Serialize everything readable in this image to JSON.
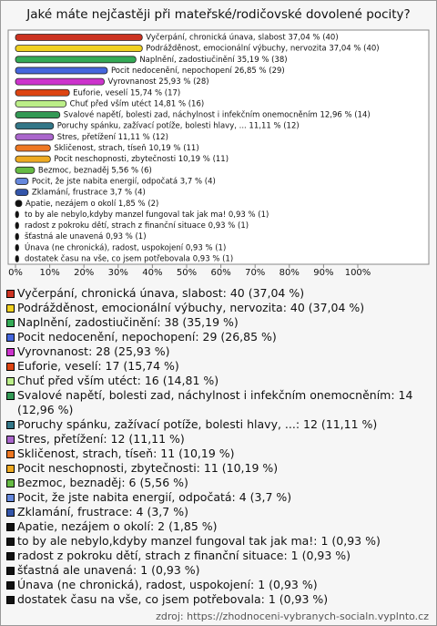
{
  "chart_data": {
    "type": "bar",
    "orientation": "horizontal",
    "title": "Jaké máte nejčastěji při mateřské/rodičovské dovolené pocity?",
    "values": [
      37.04,
      37.04,
      35.19,
      26.85,
      25.93,
      15.74,
      14.81,
      12.96,
      11.11,
      11.11,
      10.19,
      10.19,
      5.56,
      3.7,
      3.7,
      1.85,
      0.93,
      0.93,
      0.93,
      0.93,
      0.93
    ],
    "value_labels": [
      "Vyčerpání, chronická únava, slabost 37,04 % (40)",
      "Podrážděnost, emocionální výbuchy, nervozita 37,04 % (40)",
      "Naplnění, zadostiučinění 35,19 % (38)",
      "Pocit nedocenění, nepochopení 26,85 % (29)",
      "Vyrovnanost 25,93 % (28)",
      "Euforie, veselí 15,74 % (17)",
      "Chuť před vším utéct 14,81 % (16)",
      "Svalové napětí, bolesti zad, náchylnost i infekčním onemocněním 12,96 % (14)",
      "Poruchy spánku, zažívací potíže, bolesti hlavy, ... 11,11 % (12)",
      "Stres, přetížení 11,11 % (12)",
      "Skličenost, strach, tíseň 10,19 % (11)",
      "Pocit neschopnosti, zbytečnosti 10,19 % (11)",
      "Bezmoc, beznaděj 5,56 % (6)",
      "Pocit, že jste nabita energií, odpočatá 3,7 % (4)",
      "Zklamání, frustrace 3,7 % (4)",
      "Apatie, nezájem o okolí 1,85 % (2)",
      "to by ale nebylo,kdyby manzel fungoval tak jak ma! 0,93 % (1)",
      "radost z pokroku dětí, strach z finanční situace 0,93 % (1)",
      "šťastná ale unavená 0,93 % (1)",
      "Únava (ne chronická), radost, uspokojení 0,93 % (1)",
      "dostatek času na vše, co jsem potřebovala 0,93 % (1)"
    ],
    "colors": [
      "#cc3322",
      "#f0d020",
      "#33aa55",
      "#4466dd",
      "#cc33cc",
      "#dd4411",
      "#bbee88",
      "#339955",
      "#337788",
      "#aa66cc",
      "#ee7722",
      "#eeaa22",
      "#66bb44",
      "#6688dd",
      "#3355aa",
      "#111111",
      "#111111",
      "#111111",
      "#111111",
      "#111111",
      "#111111"
    ],
    "legend": [
      "Vyčerpání, chronická únava, slabost: 40 (37,04 %)",
      "Podrážděnost, emocionální výbuchy, nervozita: 40 (37,04 %)",
      "Naplnění, zadostiučinění: 38 (35,19 %)",
      "Pocit nedocenění, nepochopení: 29 (26,85 %)",
      "Vyrovnanost: 28 (25,93 %)",
      "Euforie, veselí: 17 (15,74 %)",
      "Chuť před vším utéct: 16 (14,81 %)",
      "Svalové napětí, bolesti zad, náchylnost i infekčním onemocněním: 14 (12,96 %)",
      "Poruchy spánku, zažívací potíže, bolesti hlavy, ...: 12 (11,11 %)",
      "Stres, přetížení: 12 (11,11 %)",
      "Skličenost, strach, tíseň: 11 (10,19 %)",
      "Pocit neschopnosti, zbytečnosti: 11 (10,19 %)",
      "Bezmoc, beznaděj: 6 (5,56 %)",
      "Pocit, že jste nabita energií, odpočatá: 4 (3,7 %)",
      "Zklamání, frustrace: 4 (3,7 %)",
      "Apatie, nezájem o okolí: 2 (1,85 %)",
      "to by ale nebylo,kdyby manzel fungoval tak jak ma!: 1 (0,93 %)",
      "radost z pokroku dětí, strach z finanční situace: 1 (0,93 %)",
      "šťastná ale unavená: 1 (0,93 %)",
      "Únava (ne chronická), radost, uspokojení: 1 (0,93 %)",
      "dostatek času na vše, co jsem potřebovala: 1 (0,93 %)"
    ],
    "xlim": [
      0,
      100
    ],
    "xticks": [
      {
        "value": 0,
        "label": "0%"
      },
      {
        "value": 10,
        "label": "10%"
      },
      {
        "value": 20,
        "label": "20%"
      },
      {
        "value": 30,
        "label": "30%"
      },
      {
        "value": 40,
        "label": "40%"
      },
      {
        "value": 50,
        "label": "50%"
      },
      {
        "value": 60,
        "label": "60%"
      },
      {
        "value": 70,
        "label": "70%"
      },
      {
        "value": 80,
        "label": "80%"
      },
      {
        "value": 90,
        "label": "90%"
      },
      {
        "value": 100,
        "label": "100%"
      }
    ],
    "source": "zdroj: https://zhodnoceni-vybranych-socialn.vyplnto.cz"
  }
}
